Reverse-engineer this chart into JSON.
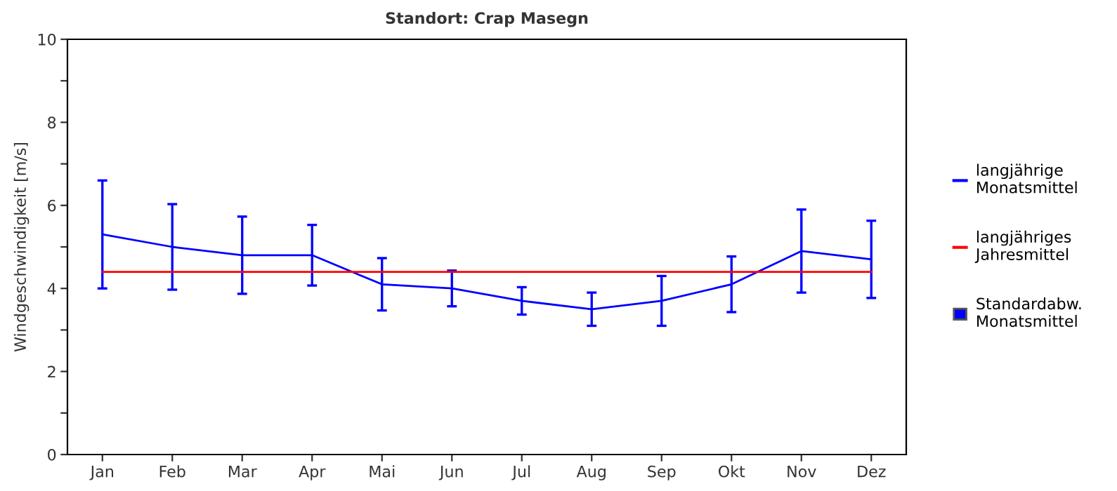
{
  "chart_data": {
    "type": "line",
    "title": "Standort: Crap Masegn",
    "ylabel": "Windgeschwindigkeit [m/s]",
    "categories": [
      "Jan",
      "Feb",
      "Mar",
      "Apr",
      "Mai",
      "Jun",
      "Jul",
      "Aug",
      "Sep",
      "Okt",
      "Nov",
      "Dez"
    ],
    "series": [
      {
        "name": "langjährige\nMonatsmittel",
        "color": "#0000ff",
        "values": [
          5.3,
          5.0,
          4.8,
          4.8,
          4.1,
          4.0,
          3.7,
          3.5,
          3.7,
          4.1,
          4.9,
          4.7
        ],
        "errors": [
          1.3,
          1.03,
          0.93,
          0.73,
          0.63,
          0.43,
          0.33,
          0.4,
          0.6,
          0.67,
          1.0,
          0.93
        ]
      },
      {
        "name": "langjähriges\nJahresmittel",
        "color": "#ff0000",
        "values": [
          4.4,
          4.4,
          4.4,
          4.4,
          4.4,
          4.4,
          4.4,
          4.4,
          4.4,
          4.4,
          4.4,
          4.4
        ]
      }
    ],
    "annotations": [
      "Standardabw.\nMonatsmittel"
    ],
    "ylim": [
      0,
      10
    ],
    "yticks": [
      0,
      {
        "value": 1,
        "label": null
      },
      2,
      {
        "value": 3,
        "label": null
      },
      4,
      {
        "value": 5,
        "label": null
      },
      6,
      {
        "value": 7,
        "label": null
      },
      8,
      {
        "value": 9,
        "label": null
      },
      10
    ],
    "grid": false,
    "legend": "right",
    "marker": "none",
    "line_style": "solid"
  }
}
